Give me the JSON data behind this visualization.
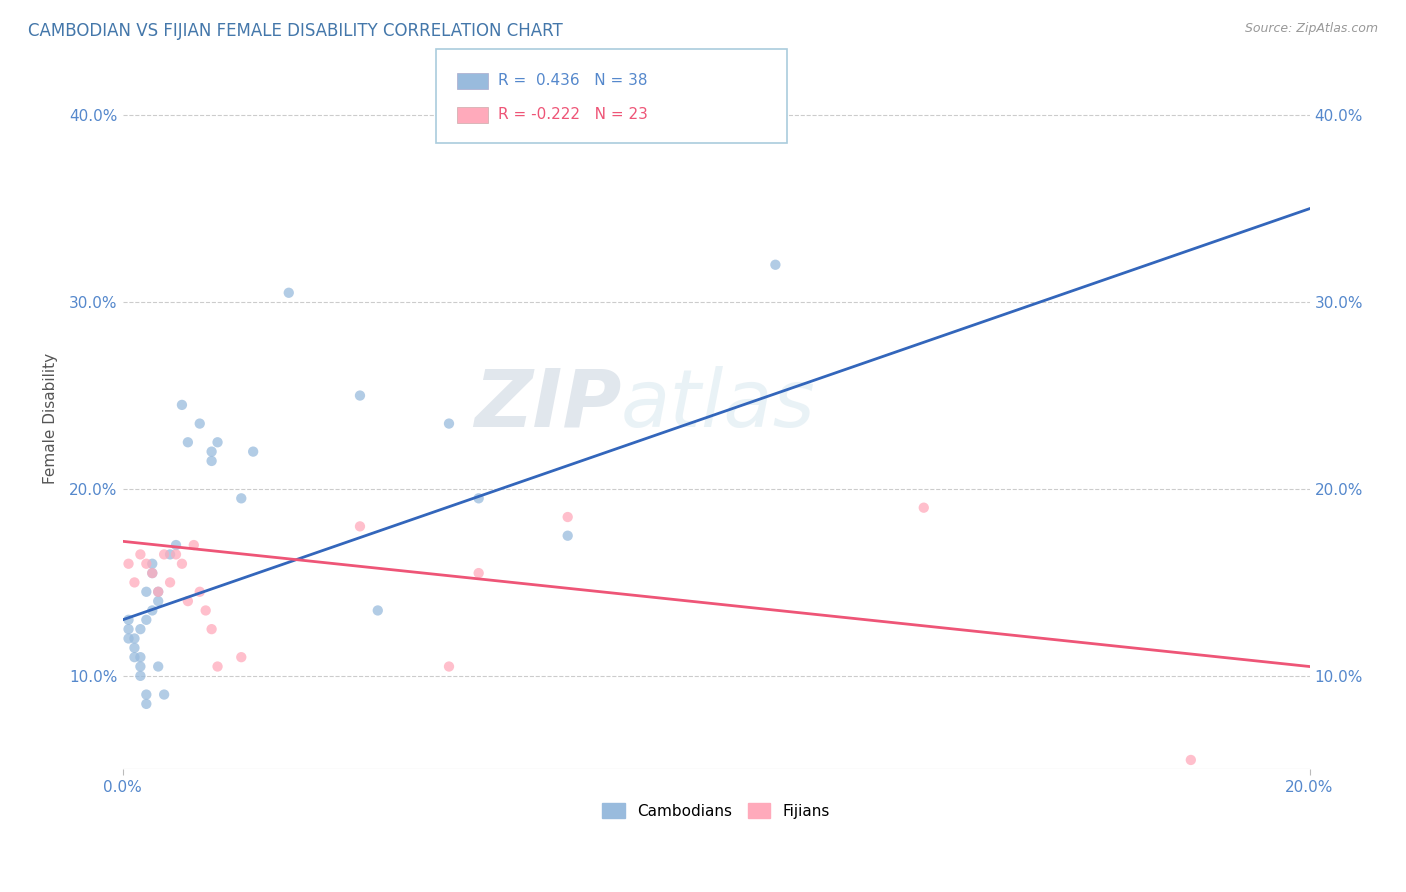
{
  "title": "CAMBODIAN VS FIJIAN FEMALE DISABILITY CORRELATION CHART",
  "source": "Source: ZipAtlas.com",
  "ylabel": "Female Disability",
  "xlim": [
    0.0,
    0.2
  ],
  "ylim": [
    0.05,
    0.425
  ],
  "yticks": [
    0.1,
    0.2,
    0.3,
    0.4
  ],
  "ytick_labels": [
    "10.0%",
    "20.0%",
    "30.0%",
    "40.0%"
  ],
  "xtick_labels_left": "0.0%",
  "xtick_labels_right": "20.0%",
  "cambodian_color": "#99BBDD",
  "fijian_color": "#FFAABB",
  "cambodian_line_color": "#3366BB",
  "fijian_line_color": "#EE5577",
  "background_color": "#FFFFFF",
  "grid_color": "#CCCCCC",
  "watermark_zip": "ZIP",
  "watermark_atlas": "atlas",
  "cambodian_x": [
    0.001,
    0.001,
    0.001,
    0.002,
    0.002,
    0.002,
    0.003,
    0.003,
    0.003,
    0.003,
    0.004,
    0.004,
    0.004,
    0.004,
    0.005,
    0.005,
    0.005,
    0.006,
    0.006,
    0.006,
    0.007,
    0.008,
    0.009,
    0.01,
    0.011,
    0.013,
    0.015,
    0.015,
    0.016,
    0.02,
    0.022,
    0.028,
    0.04,
    0.043,
    0.055,
    0.06,
    0.075,
    0.11
  ],
  "cambodian_y": [
    0.13,
    0.125,
    0.12,
    0.115,
    0.11,
    0.12,
    0.105,
    0.1,
    0.11,
    0.125,
    0.085,
    0.09,
    0.13,
    0.145,
    0.135,
    0.155,
    0.16,
    0.14,
    0.145,
    0.105,
    0.09,
    0.165,
    0.17,
    0.245,
    0.225,
    0.235,
    0.215,
    0.22,
    0.225,
    0.195,
    0.22,
    0.305,
    0.25,
    0.135,
    0.235,
    0.195,
    0.175,
    0.32
  ],
  "fijian_x": [
    0.001,
    0.002,
    0.003,
    0.004,
    0.005,
    0.006,
    0.007,
    0.008,
    0.009,
    0.01,
    0.011,
    0.012,
    0.013,
    0.014,
    0.015,
    0.016,
    0.02,
    0.04,
    0.055,
    0.06,
    0.075,
    0.135,
    0.18
  ],
  "fijian_y": [
    0.16,
    0.15,
    0.165,
    0.16,
    0.155,
    0.145,
    0.165,
    0.15,
    0.165,
    0.16,
    0.14,
    0.17,
    0.145,
    0.135,
    0.125,
    0.105,
    0.11,
    0.18,
    0.105,
    0.155,
    0.185,
    0.19,
    0.055
  ],
  "cam_line_x0": 0.0,
  "cam_line_y0": 0.13,
  "cam_line_x1": 0.2,
  "cam_line_y1": 0.35,
  "fij_line_x0": 0.0,
  "fij_line_y0": 0.172,
  "fij_line_x1": 0.2,
  "fij_line_y1": 0.105
}
